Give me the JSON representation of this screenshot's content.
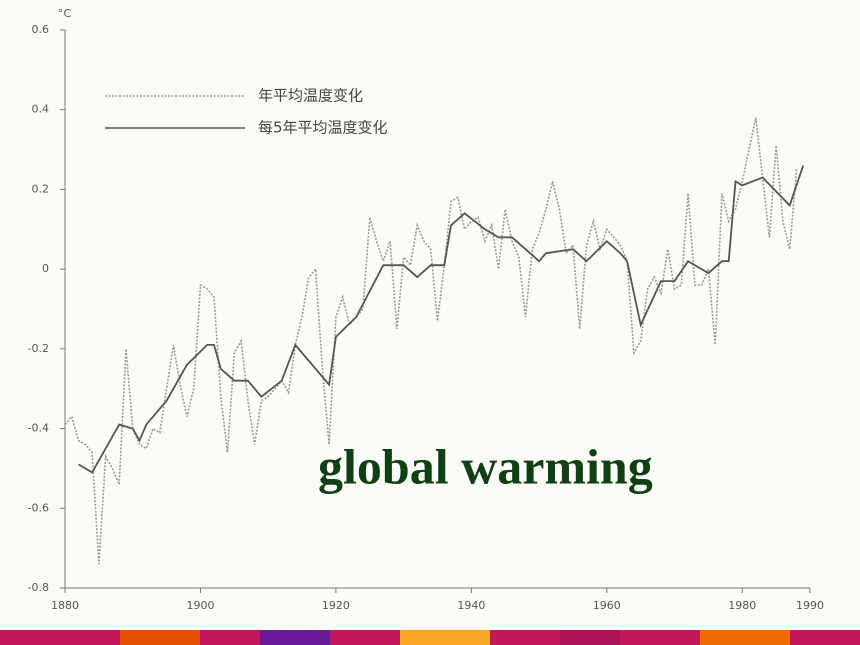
{
  "chart_data": {
    "type": "line",
    "y_label": "°C",
    "annotation": "global warming",
    "xlim": [
      1880,
      1990
    ],
    "xticks": [
      1880,
      1900,
      1920,
      1940,
      1960,
      1980,
      1990
    ],
    "ylim": [
      -0.8,
      0.6
    ],
    "yticks": [
      -0.8,
      -0.6,
      -0.4,
      -0.2,
      0,
      0.2,
      0.4,
      0.6
    ],
    "series": [
      {
        "name": "年平均温度变化",
        "color": "#9a9a9a",
        "dash": "dotted",
        "x": [
          1880,
          1881,
          1882,
          1883,
          1884,
          1885,
          1886,
          1887,
          1888,
          1889,
          1890,
          1891,
          1892,
          1893,
          1894,
          1895,
          1896,
          1897,
          1898,
          1899,
          1900,
          1901,
          1902,
          1903,
          1904,
          1905,
          1906,
          1907,
          1908,
          1909,
          1910,
          1911,
          1912,
          1913,
          1914,
          1915,
          1916,
          1917,
          1918,
          1919,
          1920,
          1921,
          1922,
          1923,
          1924,
          1925,
          1926,
          1927,
          1928,
          1929,
          1930,
          1931,
          1932,
          1933,
          1934,
          1935,
          1936,
          1937,
          1938,
          1939,
          1940,
          1941,
          1942,
          1943,
          1944,
          1945,
          1946,
          1947,
          1948,
          1949,
          1950,
          1951,
          1952,
          1953,
          1954,
          1955,
          1956,
          1957,
          1958,
          1959,
          1960,
          1961,
          1962,
          1963,
          1964,
          1965,
          1966,
          1967,
          1968,
          1969,
          1970,
          1971,
          1972,
          1973,
          1974,
          1975,
          1976,
          1977,
          1978,
          1979,
          1980,
          1981,
          1982,
          1983,
          1984,
          1985,
          1986,
          1987,
          1988
        ],
        "values": [
          -0.39,
          -0.37,
          -0.43,
          -0.44,
          -0.46,
          -0.74,
          -0.47,
          -0.5,
          -0.54,
          -0.2,
          -0.4,
          -0.44,
          -0.45,
          -0.4,
          -0.41,
          -0.3,
          -0.19,
          -0.29,
          -0.37,
          -0.3,
          -0.04,
          -0.05,
          -0.07,
          -0.32,
          -0.46,
          -0.21,
          -0.18,
          -0.33,
          -0.44,
          -0.33,
          -0.32,
          -0.3,
          -0.28,
          -0.31,
          -0.19,
          -0.12,
          -0.02,
          0,
          -0.25,
          -0.44,
          -0.12,
          -0.07,
          -0.14,
          -0.12,
          -0.1,
          0.13,
          0.07,
          0.02,
          0.07,
          -0.15,
          0.03,
          0.01,
          0.11,
          0.07,
          0.05,
          -0.13,
          0.01,
          0.17,
          0.18,
          0.1,
          0.12,
          0.13,
          0.07,
          0.11,
          0,
          0.15,
          0.07,
          0.03,
          -0.12,
          0.05,
          0.09,
          0.15,
          0.22,
          0.15,
          0.04,
          0.06,
          -0.15,
          0.06,
          0.12,
          0.05,
          0.1,
          0.08,
          0.06,
          0.02,
          -0.21,
          -0.18,
          -0.05,
          -0.02,
          -0.06,
          0.05,
          -0.05,
          -0.04,
          0.19,
          -0.04,
          -0.04,
          0,
          -0.19,
          0.19,
          0.12,
          0.15,
          0.22,
          0.3,
          0.38,
          0.23,
          0.08,
          0.31,
          0.12,
          0.05,
          0.25
        ]
      },
      {
        "name": "每5年平均温度变化",
        "color": "#555555",
        "dash": "solid",
        "x": [
          1882,
          1884,
          1888,
          1890,
          1891,
          1892,
          1895,
          1898,
          1901,
          1902,
          1903,
          1905,
          1907,
          1909,
          1912,
          1914,
          1919,
          1920,
          1923,
          1927,
          1930,
          1932,
          1934,
          1936,
          1937,
          1939,
          1942,
          1944,
          1946,
          1950,
          1951,
          1955,
          1957,
          1960,
          1962,
          1963,
          1965,
          1968,
          1970,
          1972,
          1975,
          1977,
          1978,
          1979,
          1980,
          1983,
          1987,
          1989
        ],
        "values": [
          -0.49,
          -0.51,
          -0.39,
          -0.4,
          -0.43,
          -0.39,
          -0.33,
          -0.24,
          -0.19,
          -0.19,
          -0.25,
          -0.28,
          -0.28,
          -0.32,
          -0.28,
          -0.19,
          -0.29,
          -0.17,
          -0.12,
          0.01,
          0.01,
          -0.02,
          0.01,
          0.01,
          0.11,
          0.14,
          0.1,
          0.08,
          0.08,
          0.02,
          0.04,
          0.05,
          0.02,
          0.07,
          0.04,
          0.02,
          -0.14,
          -0.03,
          -0.03,
          0.02,
          -0.01,
          0.02,
          0.02,
          0.22,
          0.21,
          0.23,
          0.16,
          0.26
        ]
      }
    ]
  }
}
